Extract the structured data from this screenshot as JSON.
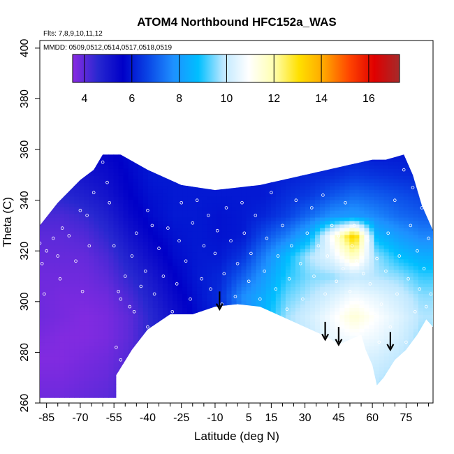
{
  "chart_data": {
    "type": "heatmap",
    "title": "ATOM4 Northbound HFC152a_WAS",
    "notes": [
      "Flts: 7,8,9,10,11,12",
      "MMDD: 0509,0512,0514,0517,0518,0519"
    ],
    "xlabel": "Latitude (deg N)",
    "ylabel": "Theta (C)",
    "xlim": [
      -88,
      87
    ],
    "ylim": [
      260,
      403
    ],
    "x_ticks": [
      -85,
      -70,
      -55,
      -40,
      -25,
      -10,
      5,
      15,
      30,
      45,
      60,
      75
    ],
    "x_tick_labels": [
      "-85",
      "-70",
      "-55",
      "-40",
      "-25",
      "-10",
      "5",
      "15",
      "30",
      "45",
      "60",
      "75"
    ],
    "x_minor_ticks": [
      -80,
      -75,
      -65,
      -60,
      -50,
      -45,
      -35,
      -30,
      -20,
      -15,
      -5,
      0,
      10,
      20,
      25,
      35,
      40,
      50,
      55,
      65,
      70,
      80,
      85
    ],
    "y_ticks": [
      260,
      280,
      300,
      320,
      340,
      360,
      380,
      400
    ],
    "y_tick_labels": [
      "260",
      "280",
      "300",
      "320",
      "340",
      "360",
      "380",
      "400"
    ],
    "colorbar": {
      "range": [
        3.5,
        17.3
      ],
      "ticks": [
        4,
        6,
        8,
        10,
        12,
        14,
        16
      ],
      "tick_labels": [
        "4",
        "6",
        "8",
        "10",
        "12",
        "14",
        "16"
      ],
      "colors": [
        "#8a2be2",
        "#2828d0",
        "#0000c8",
        "#0a46e6",
        "#1e90ff",
        "#00bfff",
        "#bfe8ff",
        "#ffffff",
        "#ffffb0",
        "#ffe000",
        "#ffa500",
        "#ff4500",
        "#e00000",
        "#a52a2a"
      ]
    },
    "field": {
      "lat_grid": [
        -88,
        -78,
        -68,
        -58,
        -48,
        -38,
        -28,
        -18,
        -8,
        2,
        12,
        22,
        32,
        42,
        52,
        62,
        72,
        82
      ],
      "theta_grid": [
        262,
        270,
        278,
        286,
        294,
        302,
        310,
        318,
        326,
        334,
        342,
        350,
        358
      ],
      "values": [
        [
          3.8,
          3.7,
          3.6,
          3.7,
          3.8,
          3.8,
          3.8,
          3.9,
          4.0,
          4.2,
          4.5,
          4.8,
          5.0
        ],
        [
          3.8,
          3.7,
          3.6,
          3.6,
          3.7,
          3.7,
          3.8,
          3.9,
          4.0,
          4.2,
          4.6,
          4.9,
          5.1
        ],
        [
          3.9,
          3.8,
          3.7,
          3.6,
          3.6,
          3.7,
          3.8,
          3.9,
          4.1,
          4.4,
          4.8,
          5.1,
          5.3
        ],
        [
          4.0,
          3.9,
          3.8,
          3.7,
          3.7,
          3.8,
          4.0,
          4.2,
          4.5,
          4.8,
          5.1,
          5.3,
          5.5
        ],
        [
          4.3,
          4.2,
          4.1,
          4.0,
          4.0,
          4.2,
          4.5,
          4.8,
          5.1,
          5.4,
          5.6,
          5.7,
          5.8
        ],
        [
          4.7,
          4.6,
          4.6,
          4.6,
          4.6,
          4.8,
          5.0,
          5.3,
          5.6,
          5.8,
          5.9,
          6.0,
          6.0
        ],
        [
          5.0,
          5.0,
          5.1,
          5.1,
          5.2,
          5.4,
          5.6,
          5.8,
          5.9,
          6.0,
          6.0,
          6.0,
          6.0
        ],
        [
          5.4,
          5.4,
          5.5,
          5.6,
          5.8,
          5.9,
          6.0,
          6.0,
          6.0,
          6.0,
          6.0,
          6.0,
          6.0
        ],
        [
          5.8,
          5.8,
          5.9,
          6.0,
          6.1,
          6.3,
          6.2,
          6.0,
          5.9,
          5.9,
          6.0,
          6.0,
          6.0
        ],
        [
          6.5,
          6.6,
          6.8,
          7.0,
          7.4,
          7.7,
          7.0,
          6.4,
          6.0,
          6.0,
          6.0,
          6.0,
          6.0
        ],
        [
          7.8,
          8.0,
          8.2,
          8.5,
          8.6,
          8.4,
          8.0,
          7.5,
          6.8,
          6.2,
          6.0,
          6.0,
          6.0
        ],
        [
          9.0,
          9.2,
          9.4,
          9.6,
          9.7,
          9.4,
          9.0,
          8.7,
          7.5,
          6.6,
          6.3,
          6.1,
          6.0
        ],
        [
          9.3,
          9.6,
          9.8,
          10.0,
          10.2,
          9.8,
          9.5,
          9.8,
          8.5,
          7.2,
          6.5,
          6.2,
          6.0
        ],
        [
          9.5,
          9.8,
          10.2,
          10.6,
          10.8,
          10.3,
          9.6,
          10.5,
          11.0,
          7.8,
          6.9,
          6.3,
          6.0
        ],
        [
          9.7,
          10.0,
          10.4,
          10.8,
          11.5,
          10.8,
          10.0,
          11.8,
          13.5,
          8.0,
          7.2,
          6.5,
          6.1
        ],
        [
          9.6,
          9.9,
          10.2,
          10.6,
          10.9,
          10.5,
          9.8,
          9.6,
          8.6,
          7.6,
          7.0,
          6.4,
          6.0
        ],
        [
          9.4,
          9.6,
          9.9,
          10.2,
          10.4,
          10.1,
          9.6,
          8.8,
          8.0,
          7.2,
          6.8,
          6.3,
          6.0
        ],
        [
          9.0,
          9.2,
          9.4,
          9.6,
          9.8,
          9.6,
          9.1,
          8.4,
          7.6,
          7.0,
          6.6,
          6.2,
          6.0
        ]
      ]
    },
    "coverage": {
      "bottom_boundary": [
        [
          -88,
          262
        ],
        [
          -54,
          262
        ],
        [
          -54,
          271
        ],
        [
          -47,
          281
        ],
        [
          -40,
          289
        ],
        [
          -30,
          295
        ],
        [
          -20,
          295
        ],
        [
          -10,
          298
        ],
        [
          0,
          299
        ],
        [
          10,
          298
        ],
        [
          20,
          294
        ],
        [
          30,
          290
        ],
        [
          40,
          286
        ],
        [
          45,
          283
        ],
        [
          50,
          285
        ],
        [
          55,
          287
        ],
        [
          57,
          281
        ],
        [
          60,
          275
        ],
        [
          62,
          267
        ],
        [
          65,
          270
        ],
        [
          70,
          277
        ],
        [
          75,
          281
        ],
        [
          80,
          287
        ],
        [
          84,
          293
        ],
        [
          87,
          290
        ]
      ],
      "top_boundary": [
        [
          -88,
          330
        ],
        [
          -80,
          339
        ],
        [
          -70,
          348
        ],
        [
          -64,
          352
        ],
        [
          -60,
          358
        ],
        [
          -54,
          359
        ],
        [
          -40,
          352
        ],
        [
          -25,
          346
        ],
        [
          -10,
          344
        ],
        [
          0,
          345
        ],
        [
          10,
          346
        ],
        [
          20,
          348
        ],
        [
          30,
          350
        ],
        [
          40,
          352
        ],
        [
          50,
          354
        ],
        [
          60,
          356
        ],
        [
          66,
          356
        ],
        [
          70,
          357
        ],
        [
          74,
          358
        ],
        [
          78,
          350
        ],
        [
          82,
          338
        ],
        [
          87,
          328
        ]
      ]
    },
    "samples": [
      [
        -88,
        323
      ],
      [
        -87,
        315
      ],
      [
        -85,
        320
      ],
      [
        -86,
        303
      ],
      [
        -82,
        325
      ],
      [
        -80,
        318
      ],
      [
        -79,
        309
      ],
      [
        -78,
        329
      ],
      [
        -75,
        326
      ],
      [
        -72,
        316
      ],
      [
        -70,
        336
      ],
      [
        -69,
        304
      ],
      [
        -67,
        334
      ],
      [
        -66,
        322
      ],
      [
        -64,
        343
      ],
      [
        -60,
        355
      ],
      [
        -58,
        347
      ],
      [
        -57,
        339
      ],
      [
        -55,
        322
      ],
      [
        -53,
        304
      ],
      [
        -52,
        301
      ],
      [
        -50,
        310
      ],
      [
        -48,
        298
      ],
      [
        -47,
        318
      ],
      [
        -45,
        327
      ],
      [
        -43,
        306
      ],
      [
        -41,
        312
      ],
      [
        -40,
        336
      ],
      [
        -38,
        330
      ],
      [
        -37,
        303
      ],
      [
        -35,
        321
      ],
      [
        -33,
        310
      ],
      [
        -31,
        329
      ],
      [
        -29,
        296
      ],
      [
        -27,
        307
      ],
      [
        -26,
        324
      ],
      [
        -25,
        339
      ],
      [
        -23,
        316
      ],
      [
        -21,
        301
      ],
      [
        -20,
        331
      ],
      [
        -18,
        340
      ],
      [
        -16,
        309
      ],
      [
        -15,
        322
      ],
      [
        -13,
        334
      ],
      [
        -12,
        305
      ],
      [
        -10,
        319
      ],
      [
        -9,
        328
      ],
      [
        -7,
        299
      ],
      [
        -6,
        311
      ],
      [
        -5,
        337
      ],
      [
        -3,
        324
      ],
      [
        -1,
        302
      ],
      [
        0,
        315
      ],
      [
        2,
        339
      ],
      [
        3,
        327
      ],
      [
        5,
        308
      ],
      [
        6,
        319
      ],
      [
        8,
        334
      ],
      [
        10,
        301
      ],
      [
        12,
        312
      ],
      [
        13,
        325
      ],
      [
        15,
        343
      ],
      [
        17,
        305
      ],
      [
        18,
        318
      ],
      [
        20,
        330
      ],
      [
        22,
        297
      ],
      [
        23,
        309
      ],
      [
        24,
        322
      ],
      [
        26,
        340
      ],
      [
        28,
        315
      ],
      [
        29,
        301
      ],
      [
        31,
        327
      ],
      [
        33,
        337
      ],
      [
        34,
        310
      ],
      [
        36,
        322
      ],
      [
        38,
        342
      ],
      [
        39,
        303
      ],
      [
        40,
        318
      ],
      [
        42,
        330
      ],
      [
        44,
        308
      ],
      [
        45,
        326
      ],
      [
        47,
        313
      ],
      [
        48,
        339
      ],
      [
        50,
        304
      ],
      [
        51,
        322
      ],
      [
        52,
        330
      ],
      [
        53,
        316
      ],
      [
        55,
        300
      ],
      [
        56,
        311
      ],
      [
        58,
        324
      ],
      [
        59,
        307
      ],
      [
        61,
        295
      ],
      [
        62,
        317
      ],
      [
        63,
        284
      ],
      [
        64,
        299
      ],
      [
        66,
        312
      ],
      [
        67,
        327
      ],
      [
        68,
        290
      ],
      [
        70,
        340
      ],
      [
        71,
        303
      ],
      [
        72,
        318
      ],
      [
        74,
        352
      ],
      [
        75,
        284
      ],
      [
        76,
        309
      ],
      [
        77,
        330
      ],
      [
        78,
        345
      ],
      [
        79,
        296
      ],
      [
        80,
        320
      ],
      [
        81,
        305
      ],
      [
        82,
        337
      ],
      [
        83,
        313
      ],
      [
        84,
        298
      ],
      [
        85,
        325
      ],
      [
        86,
        303
      ],
      [
        -54,
        282
      ],
      [
        -40,
        290
      ],
      [
        -52,
        277
      ],
      [
        -46,
        296
      ]
    ],
    "annotations": [
      {
        "type": "arrow",
        "x": -8,
        "y_start": 304,
        "y_end": 297,
        "direction": "down"
      },
      {
        "type": "arrow",
        "x": 39,
        "y_start": 292,
        "y_end": 285,
        "direction": "down"
      },
      {
        "type": "arrow",
        "x": 45,
        "y_start": 290,
        "y_end": 283,
        "direction": "down"
      },
      {
        "type": "arrow",
        "x": 68,
        "y_start": 288,
        "y_end": 281,
        "direction": "down"
      }
    ],
    "grid": false
  }
}
